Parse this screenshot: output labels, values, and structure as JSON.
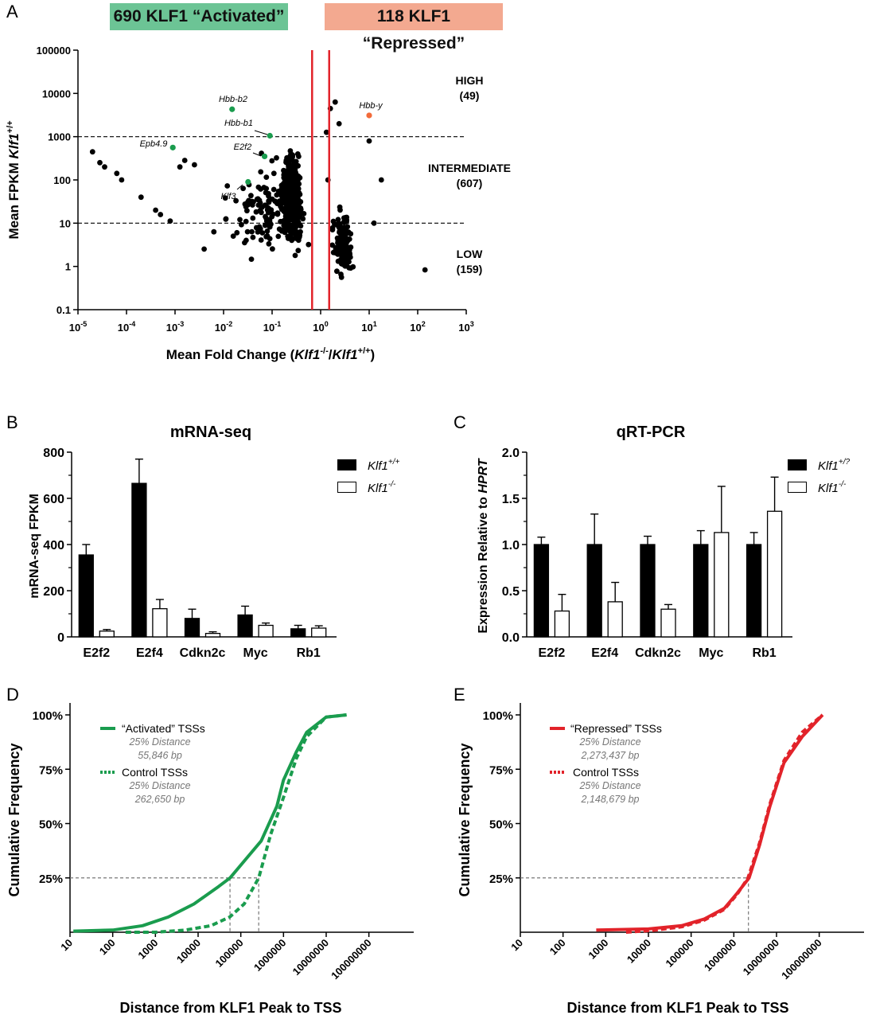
{
  "panels": {
    "A": {
      "letter": "A"
    },
    "B": {
      "letter": "B"
    },
    "C": {
      "letter": "C"
    },
    "D": {
      "letter": "D"
    },
    "E": {
      "letter": "E"
    }
  },
  "colors": {
    "activated_banner": "#6cc495",
    "repressed_banner": "#f3a990",
    "green": "#1a9c4e",
    "orange": "#f26b3a",
    "red": "#e2232a",
    "gray_dash": "#777777"
  },
  "chart_data": [
    {
      "id": "A",
      "type": "scatter",
      "banners": [
        "690 KLF1 “Activated”",
        "118 KLF1 “Repressed”"
      ],
      "xlabel_parts": [
        "Mean Fold Change (",
        "Klf1",
        "-/-",
        "/",
        "Klf1",
        "+/+",
        ")"
      ],
      "ylabel_parts": [
        "Mean FPKM ",
        "Klf1",
        "+/+"
      ],
      "x_scale": "log10",
      "y_scale": "log10",
      "xlim": [
        1e-05,
        1000
      ],
      "ylim": [
        0.1,
        100000
      ],
      "x_ticks": [
        {
          "base": "10",
          "exp": "-5"
        },
        {
          "base": "10",
          "exp": "-4"
        },
        {
          "base": "10",
          "exp": "-3"
        },
        {
          "base": "10",
          "exp": "-2"
        },
        {
          "base": "10",
          "exp": "-1"
        },
        {
          "base": "10",
          "exp": "0"
        },
        {
          "base": "10",
          "exp": "1"
        },
        {
          "base": "10",
          "exp": "2"
        },
        {
          "base": "10",
          "exp": "3"
        }
      ],
      "y_ticks": [
        "100000",
        "10000",
        "1000",
        "100",
        "10",
        "1",
        "0.1"
      ],
      "thresholds_y": [
        1000,
        10
      ],
      "fold_cutoffs_x": [
        0.667,
        1.5
      ],
      "regions": [
        {
          "label": "HIGH",
          "count": "(49)"
        },
        {
          "label": "INTERMEDIATE",
          "count": "(607)"
        },
        {
          "label": "LOW",
          "count": "(159)"
        }
      ],
      "highlighted": [
        {
          "gene": "Hbb-b2",
          "x": 0.015,
          "y": 4300,
          "color": "green"
        },
        {
          "gene": "Hbb-b1",
          "x": 0.09,
          "y": 1050,
          "color": "green"
        },
        {
          "gene": "Epb4.9",
          "x": 0.0009,
          "y": 560,
          "color": "green"
        },
        {
          "gene": "E2f2",
          "x": 0.07,
          "y": 350,
          "color": "green"
        },
        {
          "gene": "Klf3",
          "x": 0.032,
          "y": 90,
          "color": "green"
        },
        {
          "gene": "Hbb-y",
          "x": 10,
          "y": 3100,
          "color": "orange"
        }
      ],
      "points_note": "808 differentially expressed genes; activated cluster centered near fold 0.25, repressed cluster near fold 3"
    },
    {
      "id": "B",
      "type": "bar",
      "title": "mRNA-seq",
      "ylabel": "mRNA-seq FPKM",
      "ylim": [
        0,
        800
      ],
      "y_ticks": [
        "800",
        "600",
        "400",
        "200",
        "0"
      ],
      "categories": [
        "E2f2",
        "E2f4",
        "Cdkn2c",
        "Myc",
        "Rb1"
      ],
      "legend": [
        {
          "base": "Klf1",
          "sup": "+/+"
        },
        {
          "base": "Klf1",
          "sup": "-/-"
        }
      ],
      "series": [
        {
          "name": "Klf1+/+",
          "values": [
            355,
            665,
            80,
            95,
            35
          ],
          "errors": [
            45,
            105,
            40,
            38,
            15
          ]
        },
        {
          "name": "Klf1-/-",
          "values": [
            25,
            122,
            15,
            50,
            38
          ],
          "errors": [
            7,
            40,
            7,
            10,
            10
          ]
        }
      ]
    },
    {
      "id": "C",
      "type": "bar",
      "title": "qRT-PCR",
      "ylabel_parts": [
        "Expression Relative to ",
        "HPRT"
      ],
      "ylim": [
        0,
        2.0
      ],
      "y_ticks": [
        "2.0",
        "1.5",
        "1.0",
        "0.5",
        "0.0"
      ],
      "categories": [
        "E2f2",
        "E2f4",
        "Cdkn2c",
        "Myc",
        "Rb1"
      ],
      "legend": [
        {
          "base": "Klf1",
          "sup": "+/?"
        },
        {
          "base": "Klf1",
          "sup": "-/-"
        }
      ],
      "series": [
        {
          "name": "Klf1+/?",
          "values": [
            1.0,
            1.0,
            1.0,
            1.0,
            1.0
          ],
          "errors": [
            0.08,
            0.33,
            0.09,
            0.15,
            0.13
          ]
        },
        {
          "name": "Klf1-/-",
          "values": [
            0.28,
            0.38,
            0.3,
            1.13,
            1.36
          ],
          "errors": [
            0.18,
            0.21,
            0.05,
            0.5,
            0.37
          ]
        }
      ]
    },
    {
      "id": "D",
      "type": "line",
      "ylabel": "Cumulative Frequency",
      "xlabel": "Distance from KLF1 Peak to TSS",
      "x_scale": "log10",
      "xlim": [
        10,
        1000000000
      ],
      "ylim": [
        0,
        100
      ],
      "y_ticks": [
        "100%",
        "75%",
        "50%",
        "25%"
      ],
      "x_ticks": [
        "10",
        "100",
        "1000",
        "10000",
        "100000",
        "1000000",
        "10000000",
        "100000000"
      ],
      "series": [
        {
          "name": "“Activated” TSSs",
          "style": "solid",
          "color": "green",
          "distance_label": "25% Distance",
          "distance_value": "55,846 bp",
          "x": [
            12,
            100,
            500,
            2000,
            8000,
            30000,
            55846,
            150000,
            300000,
            700000,
            1000000,
            2000000,
            3500000,
            10000000,
            30000000
          ],
          "y": [
            0.5,
            1,
            3,
            7,
            13,
            21,
            25,
            35,
            42,
            58,
            70,
            83,
            92,
            99,
            100
          ]
        },
        {
          "name": "Control TSSs",
          "style": "dashed",
          "color": "green",
          "distance_label": "25% Distance",
          "distance_value": "262,650 bp",
          "x": [
            200,
            1000,
            5000,
            20000,
            55000,
            120000,
            262650,
            500000,
            1000000,
            2000000,
            3500000,
            10000000,
            30000000
          ],
          "y": [
            0,
            0,
            1,
            3,
            7,
            13,
            25,
            45,
            62,
            80,
            90,
            99,
            100
          ]
        }
      ],
      "reference_lines": [
        {
          "y": 25,
          "x": [
            55846,
            262650
          ]
        }
      ]
    },
    {
      "id": "E",
      "type": "line",
      "ylabel": "Cumulative Frequency",
      "xlabel": "Distance from KLF1 Peak to TSS",
      "x_scale": "log10",
      "xlim": [
        10,
        1000000000
      ],
      "ylim": [
        0,
        100
      ],
      "y_ticks": [
        "100%",
        "75%",
        "50%",
        "25%"
      ],
      "x_ticks": [
        "10",
        "100",
        "1000",
        "10000",
        "100000",
        "1000000",
        "10000000",
        "100000000"
      ],
      "series": [
        {
          "name": "“Repressed” TSSs",
          "style": "solid",
          "color": "red",
          "distance_label": "25% Distance",
          "distance_value": "2,273,437 bp",
          "x": [
            600,
            10000,
            60000,
            200000,
            600000,
            1200000,
            2273437,
            4000000,
            7000000,
            15000000,
            40000000,
            120000000
          ],
          "y": [
            1,
            1.5,
            3,
            6,
            11,
            18,
            25,
            40,
            58,
            78,
            90,
            100
          ]
        },
        {
          "name": "Control TSSs",
          "style": "dashed",
          "color": "red",
          "distance_label": "25% Distance",
          "distance_value": "2,148,679 bp",
          "x": [
            3000,
            12000,
            60000,
            200000,
            600000,
            1200000,
            2148679,
            4000000,
            7000000,
            15000000,
            40000000,
            120000000
          ],
          "y": [
            0,
            0.8,
            2.5,
            5.5,
            10.5,
            17.5,
            25,
            41,
            59,
            79,
            92,
            100
          ]
        }
      ],
      "reference_lines": [
        {
          "y": 25,
          "x": [
            2200000
          ]
        }
      ]
    }
  ]
}
